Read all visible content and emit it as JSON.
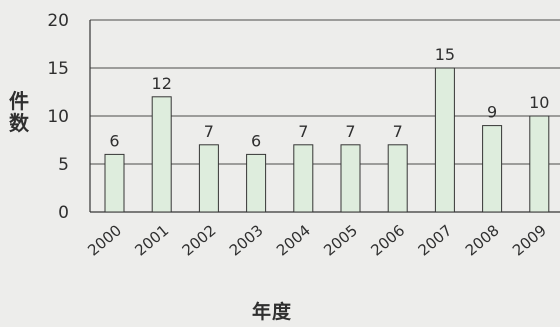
{
  "chart_data": {
    "type": "bar",
    "categories": [
      "2000",
      "2001",
      "2002",
      "2003",
      "2004",
      "2005",
      "2006",
      "2007",
      "2008",
      "2009"
    ],
    "values": [
      6,
      12,
      7,
      6,
      7,
      7,
      7,
      15,
      9,
      10
    ],
    "data_labels": [
      "6",
      "12",
      "7",
      "6",
      "7",
      "7",
      "7",
      "15",
      "9",
      "10"
    ],
    "title": "",
    "xlabel": "年度",
    "ylabel_chars": [
      "件",
      "数"
    ],
    "ylim": [
      0,
      20
    ],
    "yticks": [
      "0",
      "5",
      "10",
      "15",
      "20"
    ],
    "grid": true,
    "bar_color": "#deeddd",
    "bar_edge_color": "#353535",
    "background_color": "#ededeb"
  }
}
